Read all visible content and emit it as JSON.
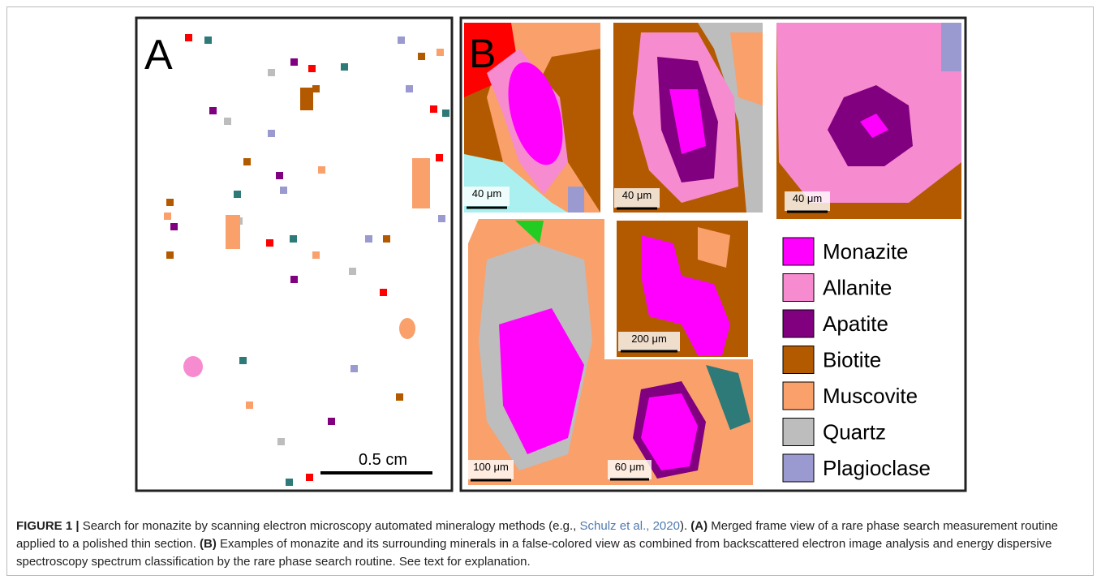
{
  "panel_a": {
    "label": "A",
    "scale_bar": "0.5 cm"
  },
  "panel_b": {
    "label": "B",
    "scale_bars": [
      "40 μm",
      "40 μm",
      "40 μm",
      "100 μm",
      "200 μm",
      "60 μm"
    ],
    "legend": [
      {
        "name": "Monazite",
        "color": "#ff00ff"
      },
      {
        "name": "Allanite",
        "color": "#f78bd0"
      },
      {
        "name": "Apatite",
        "color": "#800080"
      },
      {
        "name": "Biotite",
        "color": "#b35a00"
      },
      {
        "name": "Muscovite",
        "color": "#f9a06b"
      },
      {
        "name": "Quartz",
        "color": "#bdbdbd"
      },
      {
        "name": "Plagioclase",
        "color": "#9a9ad0"
      }
    ]
  },
  "caption": {
    "label": "FIGURE 1 |",
    "segments": [
      {
        "text": " Search for monazite by scanning electron microscopy automated mineralogy methods (e.g., ",
        "style": "plain"
      },
      {
        "text": "Schulz et al., 2020",
        "style": "link"
      },
      {
        "text": "). ",
        "style": "plain"
      },
      {
        "text": "(A)",
        "style": "bold"
      },
      {
        "text": " Merged frame view of a rare phase search measurement routine applied to a polished thin section. ",
        "style": "plain"
      },
      {
        "text": "(B)",
        "style": "bold"
      },
      {
        "text": " Examples of monazite and its surrounding minerals in a false-colored view as combined from backscattered electron image analysis and energy dispersive spectroscopy spectrum classification by the rare phase search routine. See text for explanation.",
        "style": "plain"
      }
    ]
  }
}
